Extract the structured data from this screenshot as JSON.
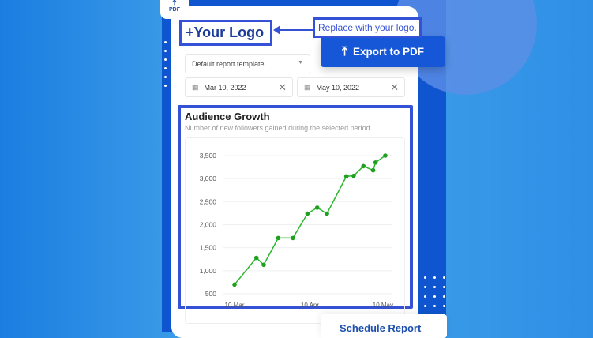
{
  "badge": {
    "label": "PDF",
    "icon": "upload-icon"
  },
  "logo": {
    "text": "+Your Logo"
  },
  "callout": {
    "text": "Replace with your logo."
  },
  "export_button": {
    "label": "Export to PDF",
    "icon": "upload-icon"
  },
  "template_select": {
    "value": "Default report template"
  },
  "date_range": {
    "start": "Mar 10, 2022",
    "end": "May 10, 2022"
  },
  "chart_card": {
    "title": "Audience Growth",
    "subtitle": "Number of new followers gained during the selected period"
  },
  "schedule_button": {
    "label": "Schedule Report"
  },
  "colors": {
    "accent": "#1557d6",
    "highlight": "#3552d6",
    "line": "#2db52d"
  },
  "chart_data": {
    "type": "line",
    "x": [
      "2022-03-10",
      "2022-03-19",
      "2022-03-22",
      "2022-03-28",
      "2022-04-03",
      "2022-04-09",
      "2022-04-13",
      "2022-04-17",
      "2022-04-25",
      "2022-04-28",
      "2022-05-02",
      "2022-05-06",
      "2022-05-07",
      "2022-05-11"
    ],
    "series": [
      {
        "values": [
          700,
          1280,
          1130,
          1710,
          1710,
          2240,
          2370,
          2240,
          3050,
          3060,
          3270,
          3180,
          3350,
          3500
        ]
      }
    ],
    "yticks": [
      "500",
      "1,000",
      "1,500",
      "2,000",
      "2,500",
      "3,000",
      "3,500"
    ],
    "xticks": [
      "10 Mar",
      "10 Apr",
      "10 May"
    ],
    "ylim": [
      500,
      3500
    ],
    "grid": true
  }
}
